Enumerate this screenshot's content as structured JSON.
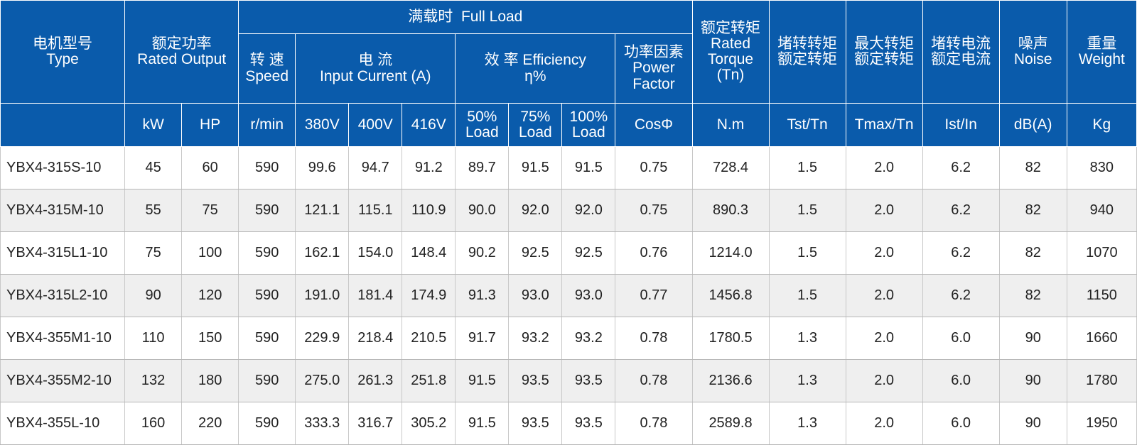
{
  "header": {
    "type": [
      "电机型号",
      "Type"
    ],
    "rated_output": [
      "额定功率",
      "Rated Output"
    ],
    "full_load": "满载时  Full Load",
    "speed": [
      "转 速",
      "Speed"
    ],
    "current": [
      "电 流",
      "Input Current (A)"
    ],
    "efficiency": [
      "效 率 Efficiency",
      "η%"
    ],
    "power_factor": [
      "功率因素",
      "Power",
      "Factor"
    ],
    "rated_torque": [
      "额定转矩",
      "Rated",
      "Torque",
      "(Tn)"
    ],
    "locked_torque": [
      "堵转转矩",
      "额定转矩"
    ],
    "max_torque": [
      "最大转矩",
      "额定转矩"
    ],
    "locked_current": [
      "堵转电流",
      "额定电流"
    ],
    "noise": [
      "噪声",
      "Noise"
    ],
    "weight": [
      "重量",
      "Weight"
    ],
    "units": {
      "kw": "kW",
      "hp": "HP",
      "rpm": "r/min",
      "v380": "380V",
      "v400": "400V",
      "v416": "416V",
      "load50": [
        "50%",
        "Load"
      ],
      "load75": [
        "75%",
        "Load"
      ],
      "load100": [
        "100%",
        "Load"
      ],
      "cos": "CosΦ",
      "nm": "N.m",
      "tst": "Tst/Tn",
      "tmax": "Tmax/Tn",
      "ist": "Ist/In",
      "db": "dB(A)",
      "kg": "Kg"
    }
  },
  "rows": [
    [
      "YBX4-315S-10",
      "45",
      "60",
      "590",
      "99.6",
      "94.7",
      "91.2",
      "89.7",
      "91.5",
      "91.5",
      "0.75",
      "728.4",
      "1.5",
      "2.0",
      "6.2",
      "82",
      "830"
    ],
    [
      "YBX4-315M-10",
      "55",
      "75",
      "590",
      "121.1",
      "115.1",
      "110.9",
      "90.0",
      "92.0",
      "92.0",
      "0.75",
      "890.3",
      "1.5",
      "2.0",
      "6.2",
      "82",
      "940"
    ],
    [
      "YBX4-315L1-10",
      "75",
      "100",
      "590",
      "162.1",
      "154.0",
      "148.4",
      "90.2",
      "92.5",
      "92.5",
      "0.76",
      "1214.0",
      "1.5",
      "2.0",
      "6.2",
      "82",
      "1070"
    ],
    [
      "YBX4-315L2-10",
      "90",
      "120",
      "590",
      "191.0",
      "181.4",
      "174.9",
      "91.3",
      "93.0",
      "93.0",
      "0.77",
      "1456.8",
      "1.5",
      "2.0",
      "6.2",
      "82",
      "1150"
    ],
    [
      "YBX4-355M1-10",
      "110",
      "150",
      "590",
      "229.9",
      "218.4",
      "210.5",
      "91.7",
      "93.2",
      "93.2",
      "0.78",
      "1780.5",
      "1.3",
      "2.0",
      "6.0",
      "90",
      "1660"
    ],
    [
      "YBX4-355M2-10",
      "132",
      "180",
      "590",
      "275.0",
      "261.3",
      "251.8",
      "91.5",
      "93.5",
      "93.5",
      "0.78",
      "2136.6",
      "1.3",
      "2.0",
      "6.0",
      "90",
      "1780"
    ],
    [
      "YBX4-355L-10",
      "160",
      "220",
      "590",
      "333.3",
      "316.7",
      "305.2",
      "91.5",
      "93.5",
      "93.5",
      "0.78",
      "2589.8",
      "1.3",
      "2.0",
      "6.0",
      "90",
      "1950"
    ]
  ]
}
